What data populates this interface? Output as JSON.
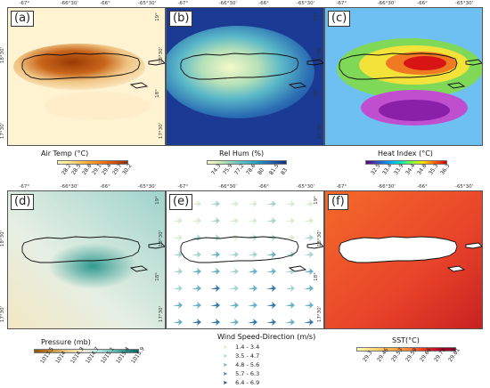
{
  "panels": [
    {
      "label": "(a)",
      "colorbar": {
        "title": "Air Temp (°C)",
        "ticks": [
          "28.2",
          "28.5",
          "28.8",
          "29.1",
          "29.4",
          "29.7",
          "30.2"
        ],
        "colors": [
          "#fff7bc",
          "#fee391",
          "#fec44f",
          "#fe9929",
          "#ec7014",
          "#cc4c02",
          "#8c2d04"
        ]
      }
    },
    {
      "label": "(b)",
      "colorbar": {
        "title": "Rel Hum (%)",
        "ticks": [
          "74.3",
          "75.9",
          "77.2",
          "78.6",
          "80",
          "81.5",
          "83"
        ],
        "colors": [
          "#ffffcc",
          "#c7e9b4",
          "#7fcdbb",
          "#41b6c4",
          "#1d91c0",
          "#225ea8",
          "#0c2c84"
        ]
      }
    },
    {
      "label": "(c)",
      "colorbar": {
        "title": "Heat Index (°C)",
        "ticks": [
          "32.5",
          "33.4",
          "33.9",
          "34.4",
          "34.8",
          "35.3",
          "36.3"
        ],
        "colors": [
          "#5e0080",
          "#3b4cc0",
          "#00a0ff",
          "#00e5c0",
          "#7fff40",
          "#ffe000",
          "#ff6000",
          "#d00000"
        ]
      }
    },
    {
      "label": "(d)",
      "colorbar": {
        "title": "Pressure (mb)",
        "ticks": [
          "1013.5",
          "1014",
          "1014.3",
          "1014.7",
          "1015.1",
          "1015.4",
          "1015.9"
        ],
        "colors": [
          "#8c510a",
          "#bf812d",
          "#dfc27d",
          "#f6e8c3",
          "#c7eae5",
          "#80cdc1",
          "#35978f",
          "#01665e"
        ]
      }
    },
    {
      "label": "(e)",
      "legend": {
        "title": "Wind Speed-Direction (m/s)",
        "classes": [
          {
            "range": "1.4 - 3.4",
            "color": "#d9ecd0"
          },
          {
            "range": "3.5 - 4.7",
            "color": "#a6d5cc"
          },
          {
            "range": "4.8 - 5.6",
            "color": "#6bb1c6"
          },
          {
            "range": "5.7 - 6.3",
            "color": "#3a7aa8"
          },
          {
            "range": "6.4 - 6.9",
            "color": "#173f6e"
          }
        ]
      }
    },
    {
      "label": "(f)",
      "colorbar": {
        "title": "SST(°C)",
        "ticks": [
          "29.3",
          "29.46",
          "29.53",
          "29.59",
          "29.66",
          "29.73",
          "29.81"
        ],
        "colors": [
          "#ffffb2",
          "#fed976",
          "#feb24c",
          "#fd8d3c",
          "#f03b20",
          "#bd0026",
          "#800026"
        ]
      }
    }
  ],
  "axes": {
    "x_ticks": [
      "-67°",
      "-66°30'",
      "-66°",
      "-65°30'"
    ],
    "y_ticks": [
      "19°",
      "18°30'",
      "18°",
      "17°30'"
    ]
  },
  "map_style": {
    "land_outline": "#111111"
  }
}
